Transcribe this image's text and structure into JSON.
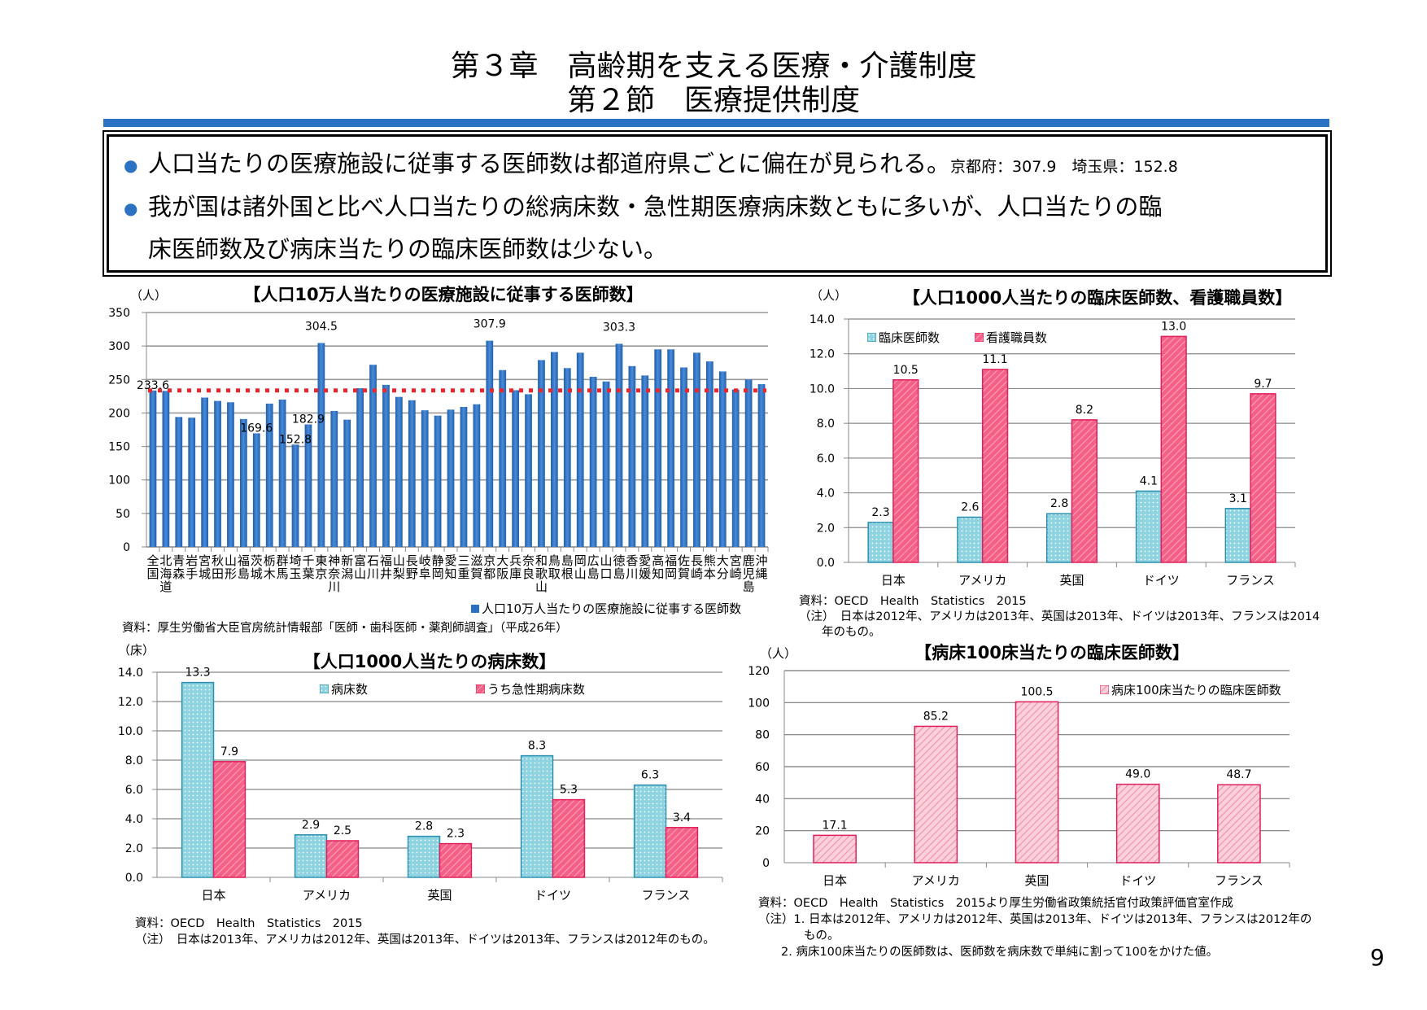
{
  "header": {
    "chapter": "第３章　高齢期を支える医療・介護制度",
    "section": "第２節　医療提供制度"
  },
  "summary": {
    "bullets": [
      {
        "text": "人口当たりの医療施設に従事する医師数は都道府県ごとに偏在が見られる。",
        "note": "京都府：307.9　埼玉県：152.8"
      },
      {
        "text": "我が国は諸外国と比べ人口当たりの総病床数・急性期医療病床数ともに多いが、人口当たりの臨",
        "text2": "床医師数及び病床当たりの臨床医師数は少ない。"
      }
    ]
  },
  "colors": {
    "accent": "#2b73c2",
    "bar_blue": "#2a6fc0",
    "average_line": "#e8282e",
    "cyan": "#8ed3e0",
    "pink": "#f5608a",
    "light_pink": "#f8b6c4"
  },
  "chart_data": [
    {
      "type": "bar",
      "title": "【人口10万人当たりの医療施設に従事する医師数】",
      "ylabel": "（人）",
      "ylim": [
        0,
        350
      ],
      "ystep": 50,
      "tick_decimals": 0,
      "grid": true,
      "categories": [
        "全国",
        "北海道",
        "青森",
        "岩手",
        "宮城",
        "秋田",
        "山形",
        "福島",
        "茨城",
        "栃木",
        "群馬",
        "埼玉",
        "千葉",
        "東京",
        "神奈川",
        "新潟",
        "富山",
        "石川",
        "福井",
        "山梨",
        "長野",
        "岐阜",
        "静岡",
        "愛知",
        "三重",
        "滋賀",
        "京都",
        "大阪",
        "兵庫",
        "奈良",
        "和歌山",
        "鳥取",
        "島根",
        "岡山",
        "広島",
        "山口",
        "徳島",
        "香川",
        "愛媛",
        "高知",
        "福岡",
        "佐賀",
        "長崎",
        "熊本",
        "大分",
        "宮崎",
        "鹿児島",
        "沖縄"
      ],
      "series": [
        {
          "name": "人口10万人当たりの医療施設に従事する医師数",
          "values": [
            233.6,
            233,
            194,
            193,
            223,
            218,
            216,
            191,
            169.6,
            214,
            220,
            152.8,
            182.9,
            304.5,
            203,
            190,
            237,
            272,
            242,
            224,
            219,
            204,
            196,
            205,
            209,
            213,
            307.9,
            264,
            234,
            228,
            279,
            291,
            267,
            290,
            254,
            247,
            303.3,
            270,
            256,
            295,
            295,
            268,
            290,
            277,
            262,
            235,
            250,
            243
          ]
        }
      ],
      "data_labels": [
        {
          "category": "全国",
          "text": "233.6"
        },
        {
          "category": "茨城",
          "text": "169.6"
        },
        {
          "category": "埼玉",
          "text": "152.8"
        },
        {
          "category": "千葉",
          "text": "182.9"
        },
        {
          "category": "東京",
          "text": "304.5"
        },
        {
          "category": "京都",
          "text": "307.9"
        },
        {
          "category": "徳島",
          "text": "303.3"
        }
      ],
      "reference_line": {
        "value": 233.6,
        "style": "dotted",
        "color": "#e8282e"
      },
      "legend": "bottom-right",
      "source": "資料：厚生労働省大臣官房統計情報部「医師・歯科医師・薬剤師調査」（平成26年）"
    },
    {
      "type": "bar",
      "title": "【人口1000人当たりの臨床医師数、看護職員数】",
      "ylabel": "（人）",
      "ylim": [
        0,
        14
      ],
      "ystep": 2,
      "tick_decimals": 1,
      "grid": true,
      "categories": [
        "日本",
        "アメリカ",
        "英国",
        "ドイツ",
        "フランス"
      ],
      "series": [
        {
          "name": "臨床医師数",
          "values": [
            2.3,
            2.6,
            2.8,
            4.1,
            3.1
          ]
        },
        {
          "name": "看護職員数",
          "values": [
            10.5,
            11.1,
            8.2,
            13.0,
            9.7
          ]
        }
      ],
      "legend": "top-left",
      "source": "資料：OECD　Health　Statistics　2015",
      "notes": [
        "（注）　日本は2012年、アメリカは2013年、英国は2013年、ドイツは2013年、フランスは2014",
        "年のもの。"
      ]
    },
    {
      "type": "bar",
      "title": "【人口1000人当たりの病床数】",
      "ylabel": "（床）",
      "ylim": [
        0,
        14
      ],
      "ystep": 2,
      "tick_decimals": 1,
      "grid": true,
      "categories": [
        "日本",
        "アメリカ",
        "英国",
        "ドイツ",
        "フランス"
      ],
      "series": [
        {
          "name": "病床数",
          "values": [
            13.3,
            2.9,
            2.8,
            8.3,
            6.3
          ]
        },
        {
          "name": "うち急性期病床数",
          "values": [
            7.9,
            2.5,
            2.3,
            5.3,
            3.4
          ]
        }
      ],
      "legend": "top",
      "source": "資料：OECD　Health　Statistics　2015",
      "notes": [
        "（注）　日本は2013年、アメリカは2012年、英国は2013年、ドイツは2013年、フランスは2012年のもの。"
      ]
    },
    {
      "type": "bar",
      "title": "【病床100床当たりの臨床医師数】",
      "ylabel": "（人）",
      "ylim": [
        0,
        120
      ],
      "ystep": 20,
      "tick_decimals": 0,
      "grid": true,
      "categories": [
        "日本",
        "アメリカ",
        "英国",
        "ドイツ",
        "フランス"
      ],
      "series": [
        {
          "name": "病床100床当たりの臨床医師数",
          "values": [
            17.1,
            85.2,
            100.5,
            49.0,
            48.7
          ]
        }
      ],
      "legend": "top-right",
      "source": "資料：OECD　Health　Statistics　2015より厚生労働省政策統括官付政策評価官室作成",
      "notes": [
        "（注）1. 日本は2012年、アメリカは2012年、英国は2013年、ドイツは2013年、フランスは2012年の",
        "もの。",
        "2. 病床100床当たりの医師数は、医師数を病床数で単純に割って100をかけた値。"
      ]
    }
  ],
  "page_number": "9"
}
